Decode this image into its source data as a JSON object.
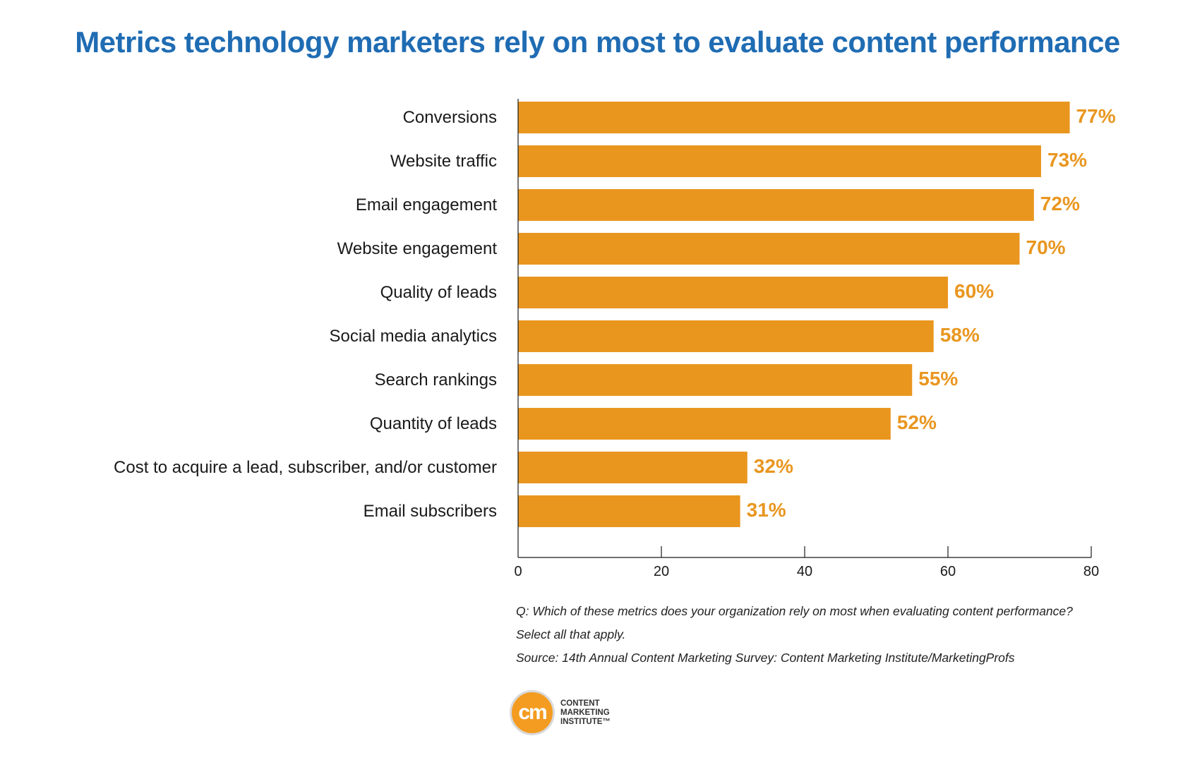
{
  "chart_data": {
    "type": "bar",
    "orientation": "horizontal",
    "title": "Metrics technology marketers rely on most to evaluate content performance",
    "categories": [
      "Conversions",
      "Website traffic",
      "Email engagement",
      "Website engagement",
      "Quality of leads",
      "Social media analytics",
      "Search rankings",
      "Quantity of leads",
      "Cost to acquire a lead, subscriber, and/or customer",
      "Email subscribers"
    ],
    "values": [
      77,
      73,
      72,
      70,
      60,
      58,
      55,
      52,
      32,
      31
    ],
    "value_labels": [
      "77%",
      "73%",
      "72%",
      "70%",
      "60%",
      "58%",
      "55%",
      "52%",
      "32%",
      "31%"
    ],
    "xlim": [
      0,
      80
    ],
    "xticks": [
      0,
      20,
      40,
      60,
      80
    ],
    "xtick_labels": [
      "0",
      "20",
      "40",
      "60",
      "80"
    ],
    "grid": false,
    "bar_color": "#e9961f",
    "label_color": "#e9961f",
    "title_color": "#1f6cb3"
  },
  "notes": {
    "question_line1": "Q: Which of these metrics does your organization rely on most when evaluating content performance?",
    "question_line2": "Select all that apply.",
    "source": "Source: 14th Annual Content Marketing Survey: Content Marketing Institute/MarketingProfs"
  },
  "logo": {
    "mark": "cm",
    "line1": "CONTENT",
    "line2": "MARKETING",
    "line3": "INSTITUTE™"
  }
}
